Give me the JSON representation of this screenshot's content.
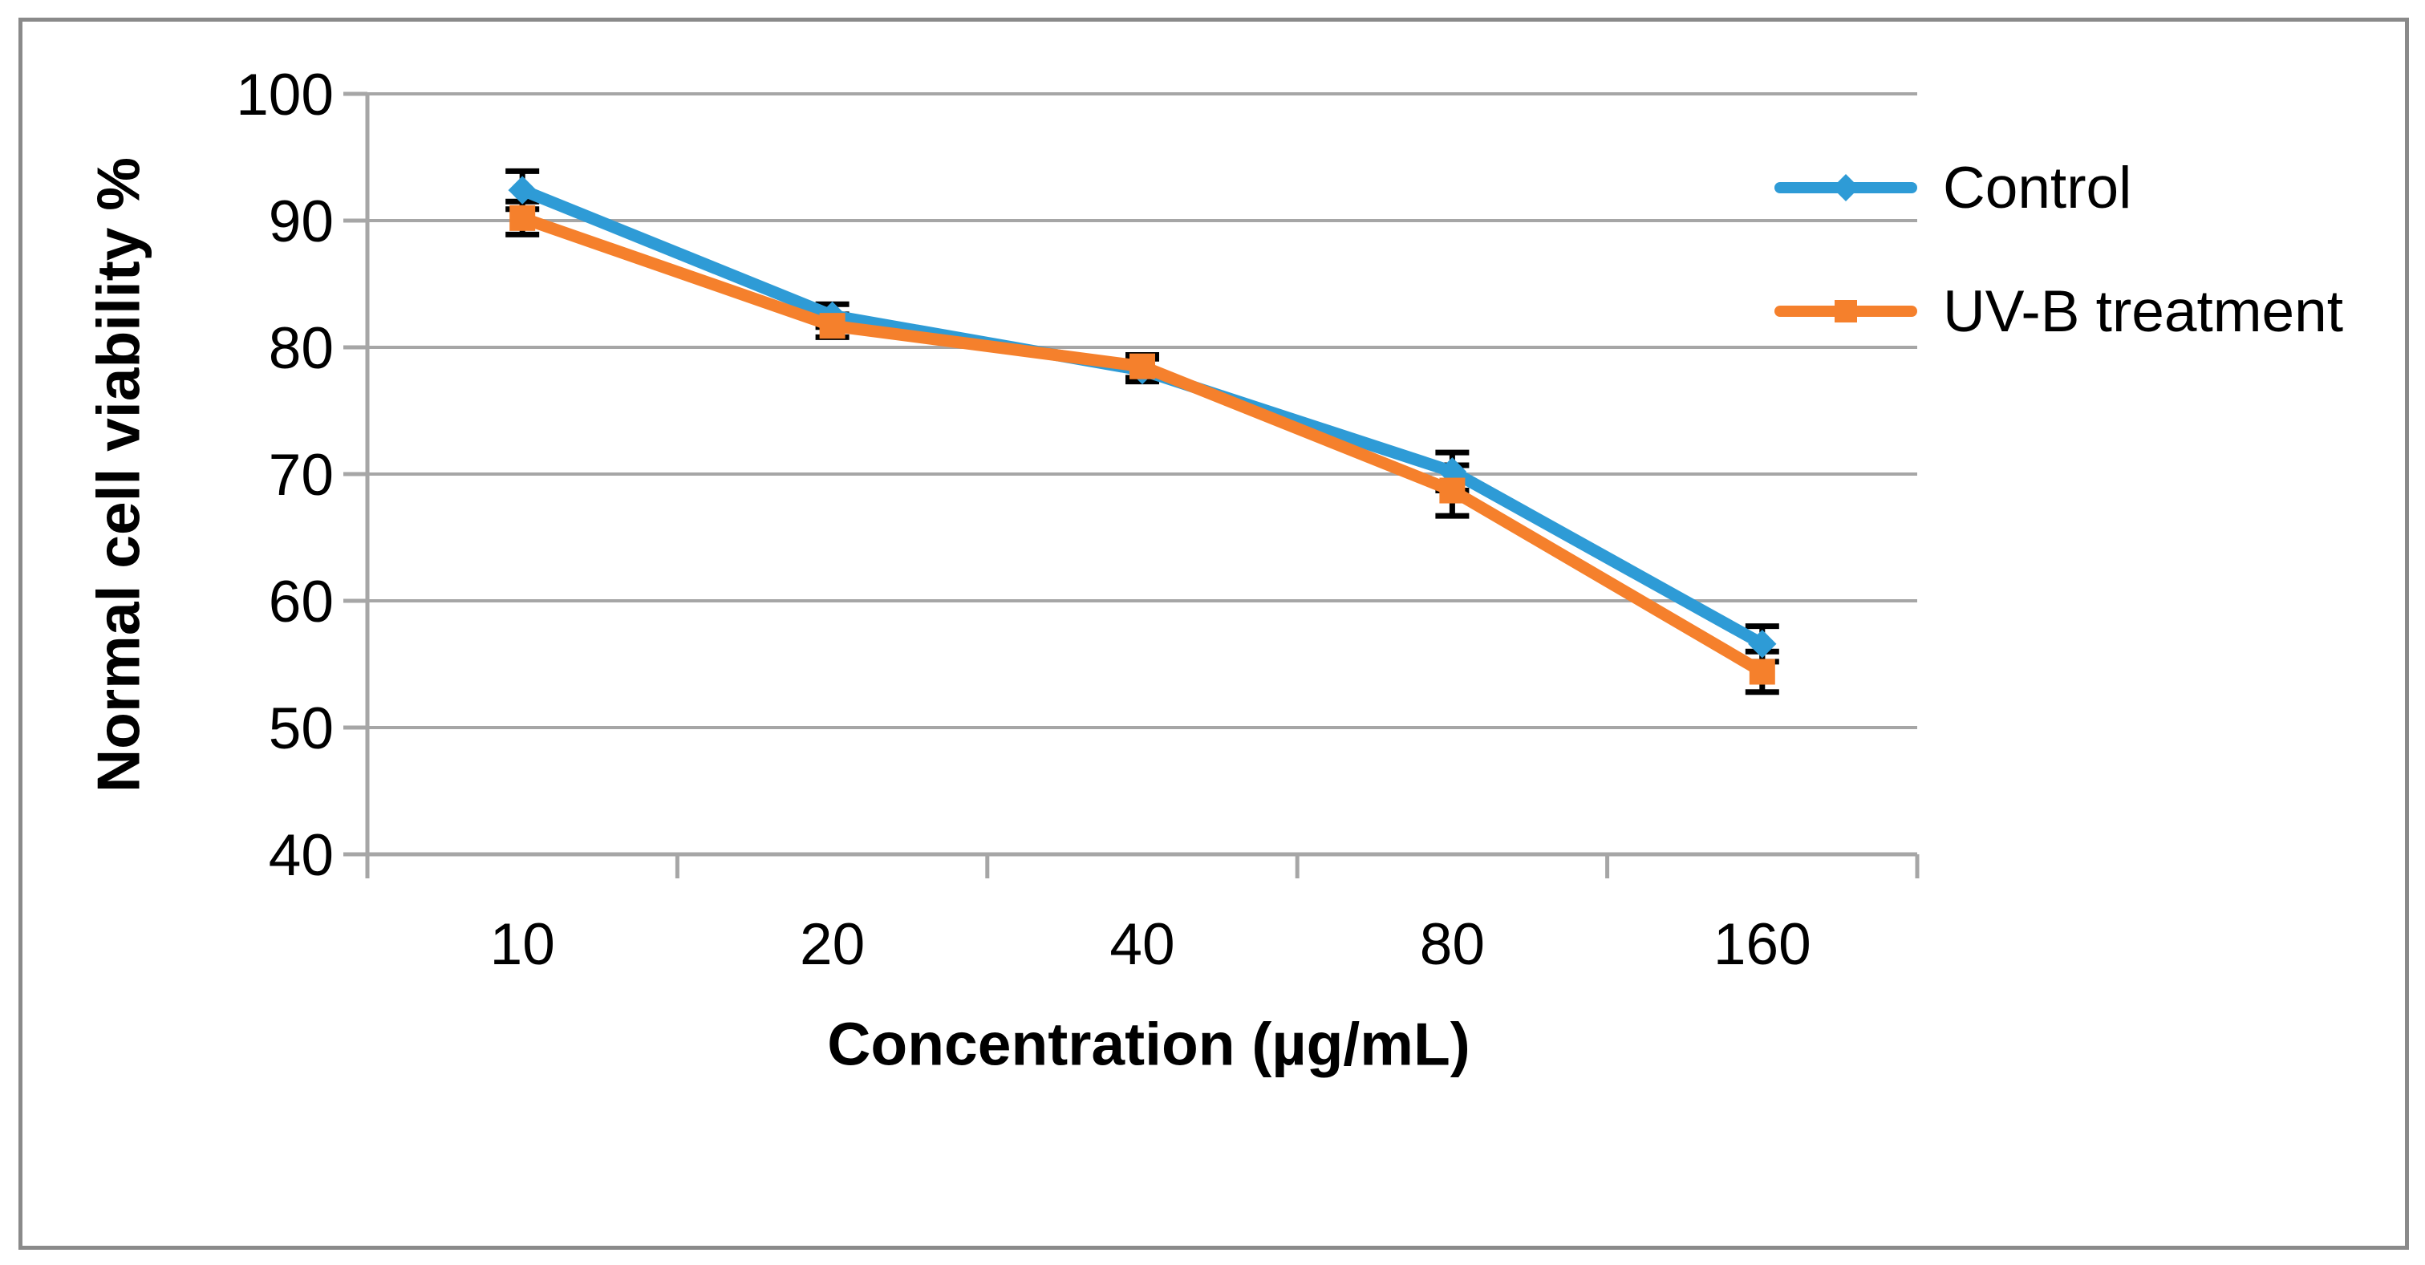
{
  "figure": {
    "background": "#FFFFFF",
    "border_color": "#8A8A8A"
  },
  "chart_data": {
    "type": "line",
    "title": "",
    "xlabel": "Concentration (µg/mL)",
    "ylabel": "Normal cell viability %",
    "categories": [
      "10",
      "20",
      "40",
      "80",
      "160"
    ],
    "ylim": [
      40,
      100
    ],
    "yticks": [
      40,
      50,
      60,
      70,
      80,
      90,
      100
    ],
    "grid": true,
    "gridline_color": "#A6A6A6",
    "axis_color": "#A6A6A6",
    "error_bar_color": "#000000",
    "legend_position": "right-top-inside",
    "series": [
      {
        "name": "Control",
        "color": "#2E9BD6",
        "marker": "diamond",
        "values": [
          92.4,
          82.5,
          78.2,
          70.2,
          56.6
        ],
        "errors": [
          1.5,
          0.9,
          0.9,
          1.5,
          1.4
        ]
      },
      {
        "name": "UV-B treatment",
        "color": "#F5802C",
        "marker": "square",
        "values": [
          90.2,
          81.7,
          78.5,
          68.7,
          54.4
        ],
        "errors": [
          1.3,
          0.9,
          0.9,
          2.0,
          1.6
        ]
      }
    ]
  }
}
